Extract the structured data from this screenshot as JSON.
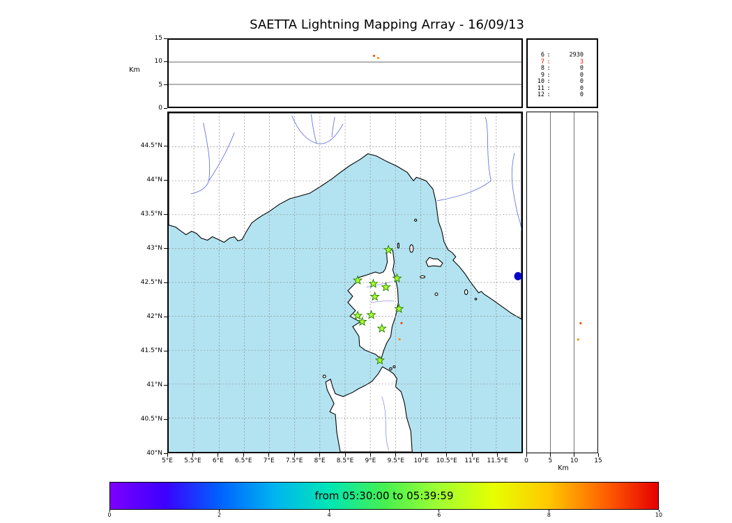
{
  "title": "SAETTA Lightning Mapping Array - 16/09/13",
  "labels": {
    "km_left": "Km",
    "km_bottom": "Km"
  },
  "colorbar": {
    "label": "from 05:30:00 to 05:39:59",
    "tick_labels": [
      "0",
      "2",
      "4",
      "6",
      "8",
      "10"
    ],
    "tick_values": [
      0,
      2,
      4,
      6,
      8,
      10
    ],
    "vmin": 0,
    "vmax": 10,
    "gradient": [
      "#7d00ff",
      "#3c00ff",
      "#0062ff",
      "#00b4f0",
      "#00e6b4",
      "#46f050",
      "#a0ff32",
      "#e6ff00",
      "#ffc800",
      "#ff6400",
      "#e60000"
    ]
  },
  "chart_data": [
    {
      "id": "time_height",
      "name": "altitude-vs-time-panel",
      "type": "scatter",
      "ylabel": "Km",
      "ylim": [
        0,
        15
      ],
      "yticks": [
        15,
        10,
        5,
        0
      ],
      "gridlines_km": [
        5,
        10
      ],
      "points": [
        {
          "x_frac": 0.582,
          "alt_km": 11.4,
          "color": "#ff4500"
        },
        {
          "x_frac": 0.594,
          "alt_km": 10.9,
          "color": "#ff8c00"
        }
      ]
    },
    {
      "id": "map",
      "name": "map-panel",
      "type": "scatter",
      "xlim": [
        5,
        12
      ],
      "ylim": [
        40,
        45
      ],
      "grid": true,
      "xtick_lons": [
        5,
        5.5,
        6,
        6.5,
        7,
        7.5,
        8,
        8.5,
        9,
        9.5,
        10,
        10.5,
        11,
        11.5
      ],
      "xtick_labels": [
        "5°E",
        "5.5°E",
        "6°E",
        "6.5°E",
        "7°E",
        "7.5°E",
        "8°E",
        "8.5°E",
        "9°E",
        "9.5°E",
        "10°E",
        "10.5°E",
        "11°E",
        "11.5°E"
      ],
      "ytick_lats": [
        44.5,
        44,
        43.5,
        43,
        42.5,
        42,
        41.5,
        41,
        40.5,
        40
      ],
      "ytick_labels": [
        "44.5°N",
        "44°N",
        "43.5°N",
        "43°N",
        "42.5°N",
        "42°N",
        "41.5°N",
        "41°N",
        "40.5°N",
        "40°N"
      ],
      "sea_color": "#b3e3f1",
      "land_color": "#ffffff",
      "lake_color": "#0000cd",
      "station_color": "#adff2f",
      "station_edge_color": "#1f7a00",
      "stations": [
        {
          "lon": 9.36,
          "lat": 42.98
        },
        {
          "lon": 8.75,
          "lat": 42.53
        },
        {
          "lon": 9.06,
          "lat": 42.48
        },
        {
          "lon": 9.31,
          "lat": 42.43
        },
        {
          "lon": 9.53,
          "lat": 42.56
        },
        {
          "lon": 9.09,
          "lat": 42.29
        },
        {
          "lon": 9.57,
          "lat": 42.11
        },
        {
          "lon": 8.75,
          "lat": 42.01
        },
        {
          "lon": 8.84,
          "lat": 41.92
        },
        {
          "lon": 9.02,
          "lat": 42.02
        },
        {
          "lon": 9.23,
          "lat": 41.82
        },
        {
          "lon": 9.19,
          "lat": 41.35
        }
      ],
      "points": [
        {
          "lon": 9.62,
          "lat": 41.9,
          "color": "#ff4500"
        },
        {
          "lon": 9.58,
          "lat": 41.66,
          "color": "#ff8c00"
        }
      ]
    },
    {
      "id": "height_lat",
      "name": "altitude-vs-latitude-panel",
      "type": "scatter",
      "xlabel": "Km",
      "xlim": [
        0,
        15
      ],
      "xticks": [
        0,
        5,
        10,
        15
      ],
      "gridlines_km": [
        5,
        10
      ],
      "points": [
        {
          "alt_km": 11.4,
          "lat": 41.9,
          "color": "#ff4500"
        },
        {
          "alt_km": 10.9,
          "lat": 41.66,
          "color": "#ff8c00"
        }
      ]
    },
    {
      "id": "station_counts",
      "name": "sources-per-station-count-panel",
      "type": "table",
      "rows": [
        {
          "stations": "6",
          "count": "2930",
          "color": "#000000"
        },
        {
          "stations": "7",
          "count": "3",
          "color": "#ff0000"
        },
        {
          "stations": "8",
          "count": "0",
          "color": "#000000"
        },
        {
          "stations": "9",
          "count": "0",
          "color": "#000000"
        },
        {
          "stations": "10",
          "count": "0",
          "color": "#000000"
        },
        {
          "stations": "11",
          "count": "0",
          "color": "#000000"
        },
        {
          "stations": "12",
          "count": "0",
          "color": "#000000"
        }
      ]
    }
  ]
}
